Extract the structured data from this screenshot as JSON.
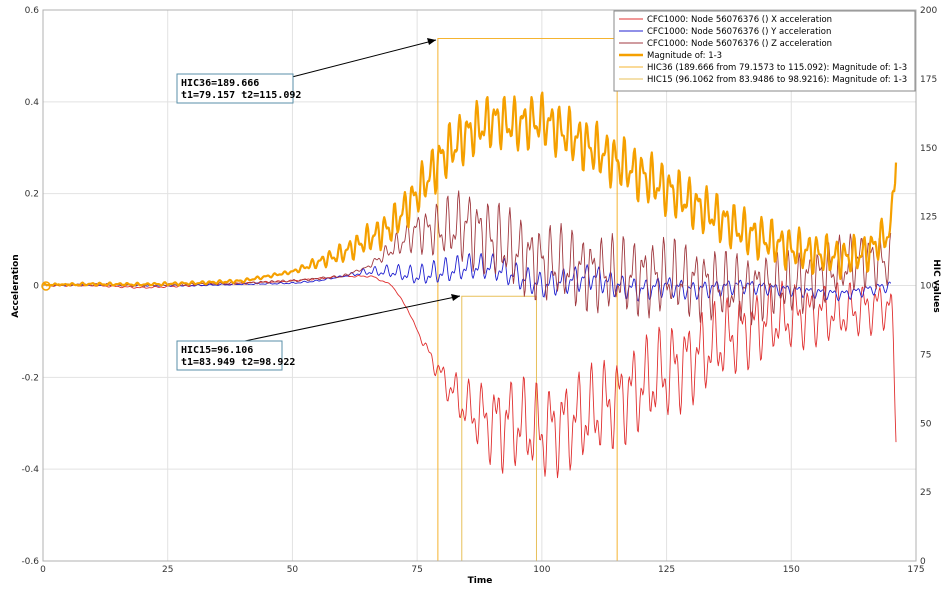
{
  "chart_data": {
    "type": "line",
    "xlabel": "Time",
    "ylabel": "Acceleration",
    "y2label": "HIC values",
    "xlim": [
      0,
      175
    ],
    "ylim": [
      -0.6,
      0.6
    ],
    "y2lim": [
      0,
      200
    ],
    "xticks": [
      "0",
      "25",
      "50",
      "75",
      "100",
      "125",
      "150",
      "175"
    ],
    "yticks": [
      "-0.6",
      "-0.4",
      "-0.2",
      "0",
      "0.2",
      "0.4",
      "0.6"
    ],
    "y2ticks": [
      "0",
      "25",
      "50",
      "75",
      "100",
      "125",
      "150",
      "175",
      "200"
    ],
    "grid": true,
    "legend_position": "top-right",
    "series": [
      {
        "name": "CFC1000: Node 56076376 () X acceleration",
        "color": "#e03030",
        "x": [
          0,
          10,
          20,
          30,
          40,
          50,
          60,
          66,
          70,
          73,
          76,
          80,
          85,
          90,
          95,
          100,
          105,
          110,
          115,
          120,
          125,
          130,
          135,
          140,
          145,
          150,
          155,
          160,
          165,
          170,
          171
        ],
        "y": [
          0,
          0,
          -0.005,
          0,
          0.005,
          0.01,
          0.02,
          0.02,
          0.0,
          -0.05,
          -0.12,
          -0.2,
          -0.27,
          -0.3,
          -0.3,
          -0.32,
          -0.3,
          -0.28,
          -0.25,
          -0.22,
          -0.19,
          -0.16,
          -0.13,
          -0.1,
          -0.08,
          -0.07,
          -0.06,
          -0.06,
          -0.05,
          -0.04,
          -0.3
        ]
      },
      {
        "name": "CFC1000: Node 56076376 () Y acceleration",
        "color": "#2020d0",
        "x": [
          0,
          10,
          20,
          30,
          40,
          50,
          55,
          60,
          65,
          70,
          75,
          80,
          85,
          90,
          95,
          100,
          105,
          110,
          115,
          120,
          125,
          130,
          140,
          150,
          160,
          170
        ],
        "y": [
          0,
          0.002,
          0.0,
          0.0,
          0.003,
          0.005,
          0.01,
          0.02,
          0.03,
          0.03,
          0.02,
          0.03,
          0.04,
          0.04,
          0.02,
          0.0,
          0.01,
          0.02,
          0.0,
          -0.01,
          0.0,
          -0.01,
          0.0,
          -0.01,
          -0.02,
          0.0
        ]
      },
      {
        "name": "CFC1000: Node 56076376 () Z acceleration",
        "color": "#a03a40",
        "x": [
          0,
          10,
          20,
          30,
          40,
          50,
          60,
          65,
          70,
          75,
          80,
          85,
          90,
          95,
          100,
          105,
          110,
          115,
          120,
          125,
          130,
          135,
          140,
          145,
          150,
          155,
          160,
          165,
          170
        ],
        "y": [
          0,
          0.002,
          0.0,
          0.003,
          0.005,
          0.01,
          0.02,
          0.04,
          0.08,
          0.12,
          0.12,
          0.13,
          0.1,
          0.07,
          0.05,
          0.04,
          0.03,
          0.02,
          0.02,
          0.02,
          0.01,
          0.0,
          -0.01,
          0.0,
          0.0,
          0.02,
          0.04,
          0.06,
          0.05
        ]
      },
      {
        "name": "Magnitude of: 1-3",
        "color": "#f5a000",
        "x": [
          0,
          10,
          20,
          30,
          40,
          45,
          50,
          55,
          60,
          65,
          70,
          75,
          80,
          85,
          90,
          95,
          100,
          105,
          110,
          115,
          120,
          125,
          130,
          135,
          140,
          145,
          150,
          155,
          160,
          165,
          170,
          171
        ],
        "y": [
          0,
          0.003,
          0.002,
          0.005,
          0.01,
          0.02,
          0.03,
          0.05,
          0.07,
          0.1,
          0.13,
          0.2,
          0.28,
          0.33,
          0.36,
          0.35,
          0.36,
          0.33,
          0.3,
          0.27,
          0.24,
          0.21,
          0.18,
          0.15,
          0.12,
          0.1,
          0.08,
          0.07,
          0.06,
          0.07,
          0.12,
          0.3
        ]
      }
    ],
    "hic_windows": [
      {
        "name": "HIC36 (189.666 from 79.1573 to 115.092): Magnitude of: 1-3",
        "color": "#f5b430",
        "t1": 79.1573,
        "t2": 115.092,
        "value": 189.666
      },
      {
        "name": "HIC15 (96.1062 from 83.9486 to 98.9216): Magnitude of: 1-3",
        "color": "#e8c05a",
        "t1": 83.9486,
        "t2": 98.9216,
        "value": 96.1062
      }
    ],
    "annotations": [
      {
        "line1": "HIC36=189.666",
        "line2": "t1=79.157 t2=115.092"
      },
      {
        "line1": "HIC15=96.106",
        "line2": "t1=83.949 t2=98.922"
      }
    ]
  }
}
